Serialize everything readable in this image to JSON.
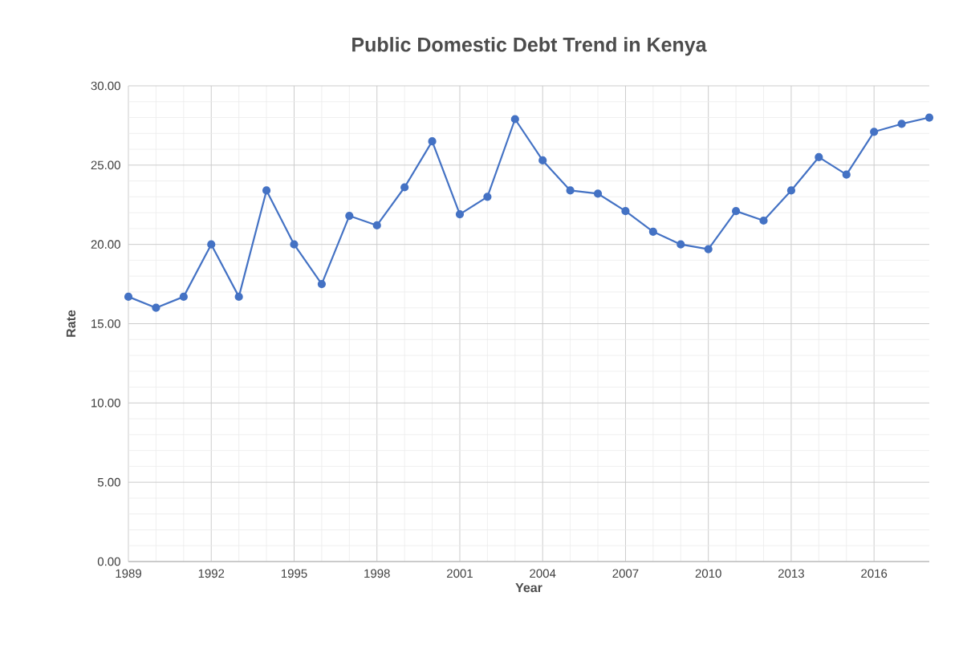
{
  "chart_data": {
    "type": "line",
    "title": "Public Domestic Debt Trend in Kenya",
    "xlabel": "Year",
    "ylabel": "Rate",
    "x": [
      1989,
      1990,
      1991,
      1992,
      1993,
      1994,
      1995,
      1996,
      1997,
      1998,
      1999,
      2000,
      2001,
      2002,
      2003,
      2004,
      2005,
      2006,
      2007,
      2008,
      2009,
      2010,
      2011,
      2012,
      2013,
      2014,
      2015,
      2016,
      2017,
      2018
    ],
    "series": [
      {
        "color": "#4472c4",
        "values": [
          16.7,
          16.0,
          16.7,
          20.0,
          16.7,
          23.4,
          20.0,
          17.5,
          21.8,
          21.2,
          23.6,
          26.5,
          21.9,
          23.0,
          27.9,
          25.3,
          23.4,
          23.2,
          22.1,
          20.8,
          20.0,
          19.7,
          22.1,
          21.5,
          23.4,
          25.5,
          24.4,
          27.1,
          27.6,
          28.0
        ]
      }
    ],
    "xlim": [
      1989,
      2018
    ],
    "xticks": [
      1989,
      1992,
      1995,
      1998,
      2001,
      2004,
      2007,
      2010,
      2013,
      2016
    ],
    "ylim": [
      0,
      30
    ],
    "yticks": [
      {
        "value": 0,
        "label": "0.00"
      },
      {
        "value": 5,
        "label": "5.00"
      },
      {
        "value": 10,
        "label": "10.00"
      },
      {
        "value": 15,
        "label": "15.00"
      },
      {
        "value": 20,
        "label": "20.00"
      },
      {
        "value": 25,
        "label": "25.00"
      },
      {
        "value": 30,
        "label": "30.00"
      }
    ],
    "grid": true,
    "marker": "circle",
    "line_style": "solid"
  }
}
